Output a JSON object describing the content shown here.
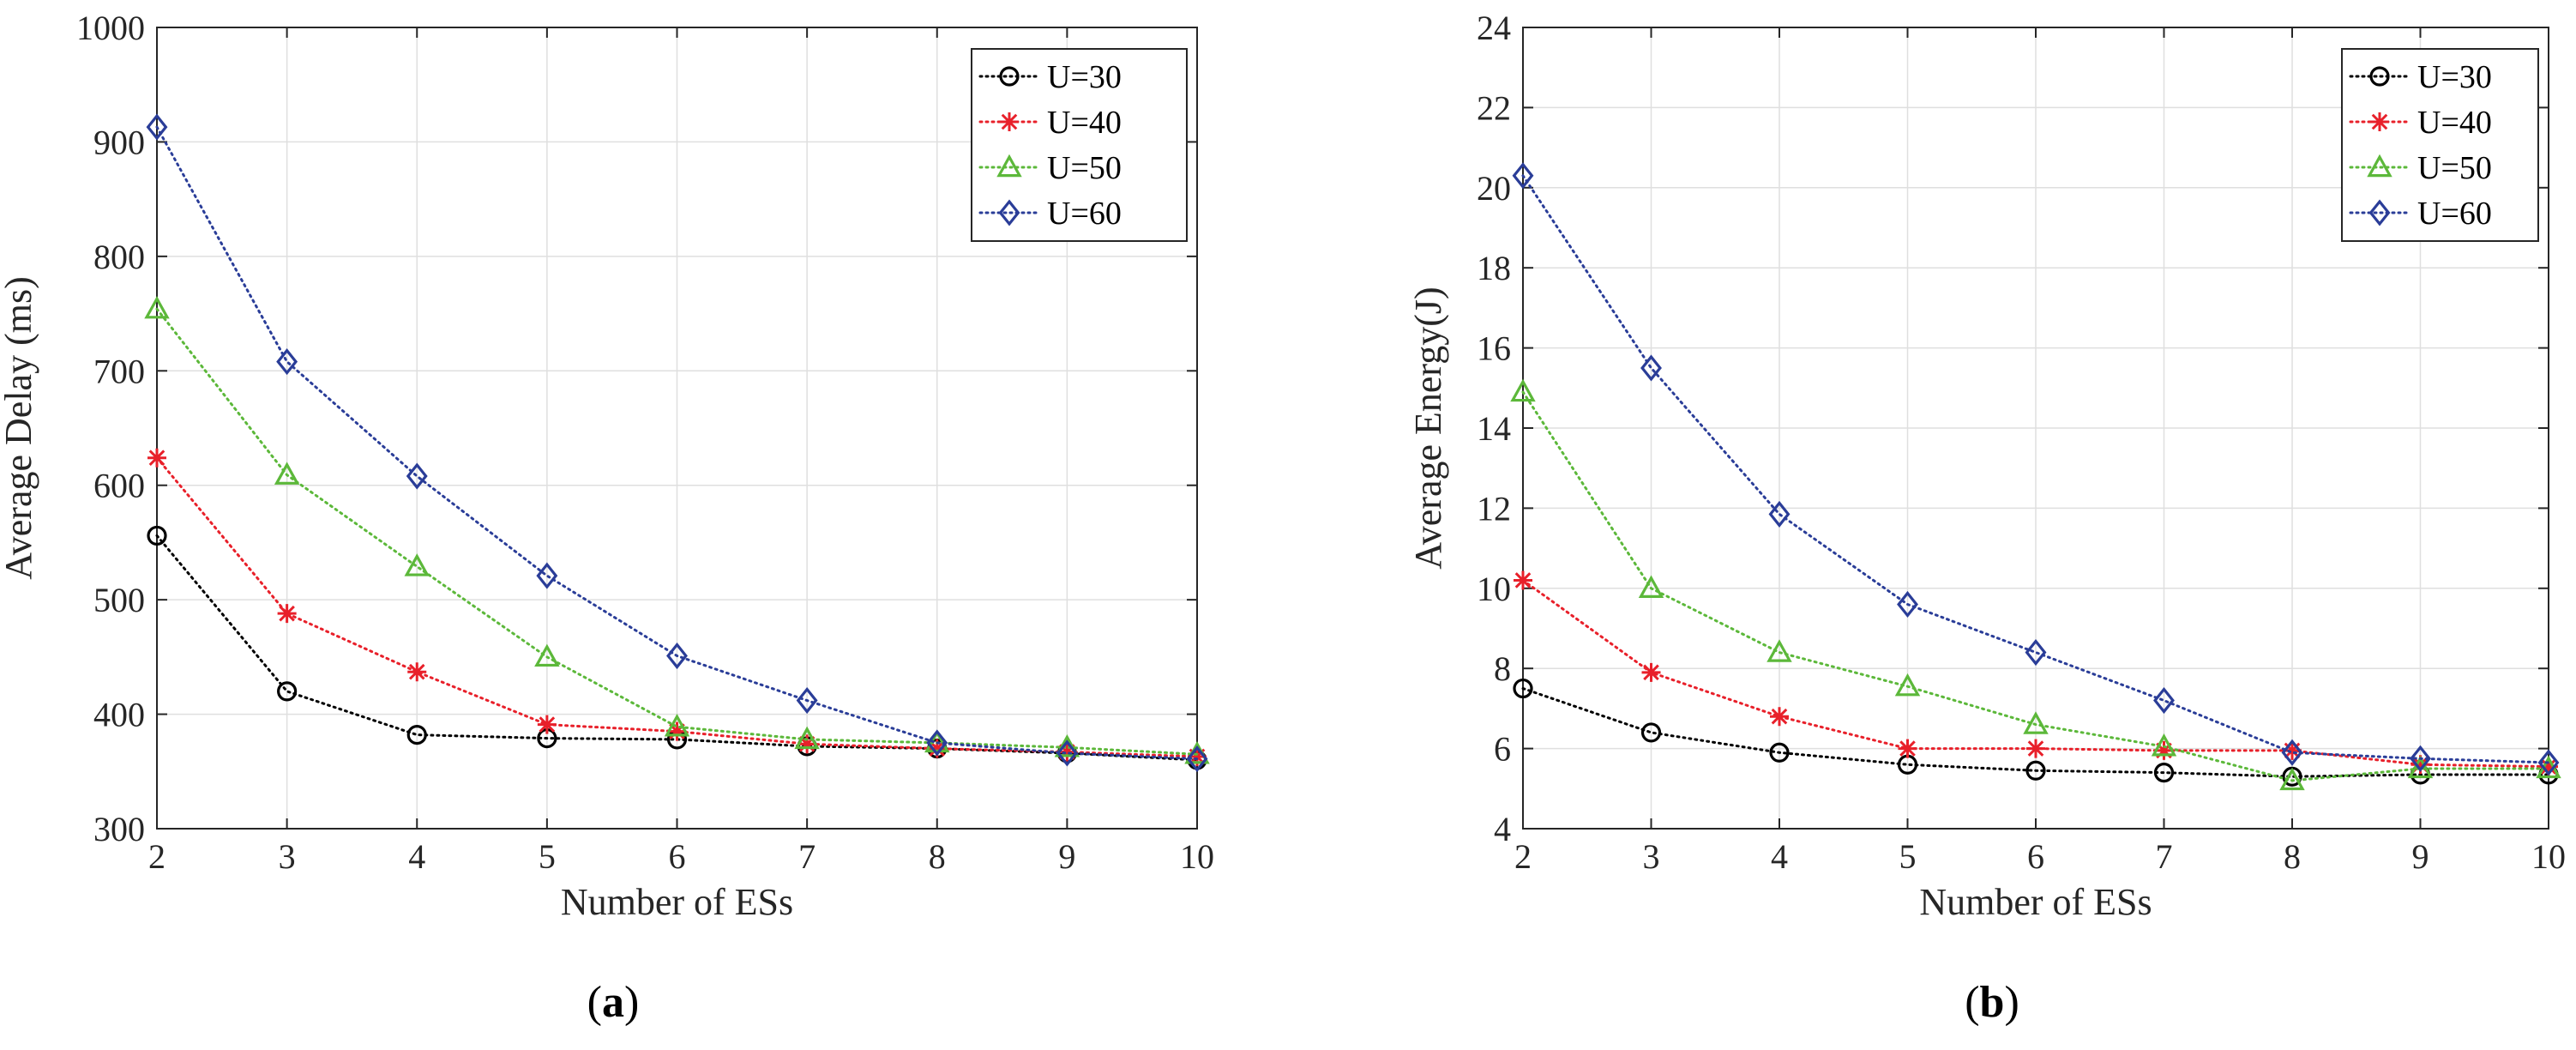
{
  "chart_data": [
    {
      "type": "line",
      "panel": "a",
      "caption_open": "(",
      "caption_letter": "a",
      "caption_close": ")",
      "title": "",
      "xlabel": "Number of ESs",
      "ylabel": "Average Delay (ms)",
      "x": [
        2,
        3,
        4,
        5,
        6,
        7,
        8,
        9,
        10
      ],
      "xlim": [
        2,
        10
      ],
      "ylim": [
        300,
        1000
      ],
      "xticks": [
        2,
        3,
        4,
        5,
        6,
        7,
        8,
        9,
        10
      ],
      "yticks": [
        300,
        400,
        500,
        600,
        700,
        800,
        900,
        1000
      ],
      "grid": true,
      "legend_position": "top-right",
      "series": [
        {
          "name": "U=30",
          "marker": "circle",
          "color": "#000000",
          "values": [
            556,
            420,
            382,
            379,
            378,
            372,
            370,
            366,
            360
          ]
        },
        {
          "name": "U=40",
          "marker": "asterisk",
          "color": "#e8202a",
          "values": [
            624,
            488,
            437,
            391,
            385,
            374,
            370,
            367,
            363
          ]
        },
        {
          "name": "U=50",
          "marker": "triangle",
          "color": "#5cb83a",
          "values": [
            754,
            609,
            529,
            450,
            389,
            378,
            375,
            371,
            365
          ]
        },
        {
          "name": "U=60",
          "marker": "diamond",
          "color": "#2a3d98",
          "values": [
            913,
            708,
            608,
            521,
            451,
            412,
            375,
            366,
            361
          ]
        }
      ]
    },
    {
      "type": "line",
      "panel": "b",
      "caption_open": "(",
      "caption_letter": "b",
      "caption_close": ")",
      "title": "",
      "xlabel": "Number of ESs",
      "ylabel": "Average Energy(J)",
      "x": [
        2,
        3,
        4,
        5,
        6,
        7,
        8,
        9,
        10
      ],
      "xlim": [
        2,
        10
      ],
      "ylim": [
        4,
        24
      ],
      "xticks": [
        2,
        3,
        4,
        5,
        6,
        7,
        8,
        9,
        10
      ],
      "yticks": [
        4,
        6,
        8,
        10,
        12,
        14,
        16,
        18,
        20,
        22,
        24
      ],
      "grid": true,
      "legend_position": "top-right",
      "series": [
        {
          "name": "U=30",
          "marker": "circle",
          "color": "#000000",
          "values": [
            7.5,
            6.4,
            5.9,
            5.6,
            5.45,
            5.4,
            5.3,
            5.35,
            5.35
          ]
        },
        {
          "name": "U=40",
          "marker": "asterisk",
          "color": "#e8202a",
          "values": [
            10.2,
            7.9,
            6.8,
            6.0,
            6.0,
            5.95,
            5.95,
            5.6,
            5.55
          ]
        },
        {
          "name": "U=50",
          "marker": "triangle",
          "color": "#5cb83a",
          "values": [
            14.9,
            10.0,
            8.4,
            7.55,
            6.6,
            6.05,
            5.2,
            5.5,
            5.5
          ]
        },
        {
          "name": "U=60",
          "marker": "diamond",
          "color": "#2a3d98",
          "values": [
            20.3,
            15.5,
            11.85,
            9.6,
            8.4,
            7.2,
            5.9,
            5.75,
            5.65
          ]
        }
      ]
    }
  ]
}
